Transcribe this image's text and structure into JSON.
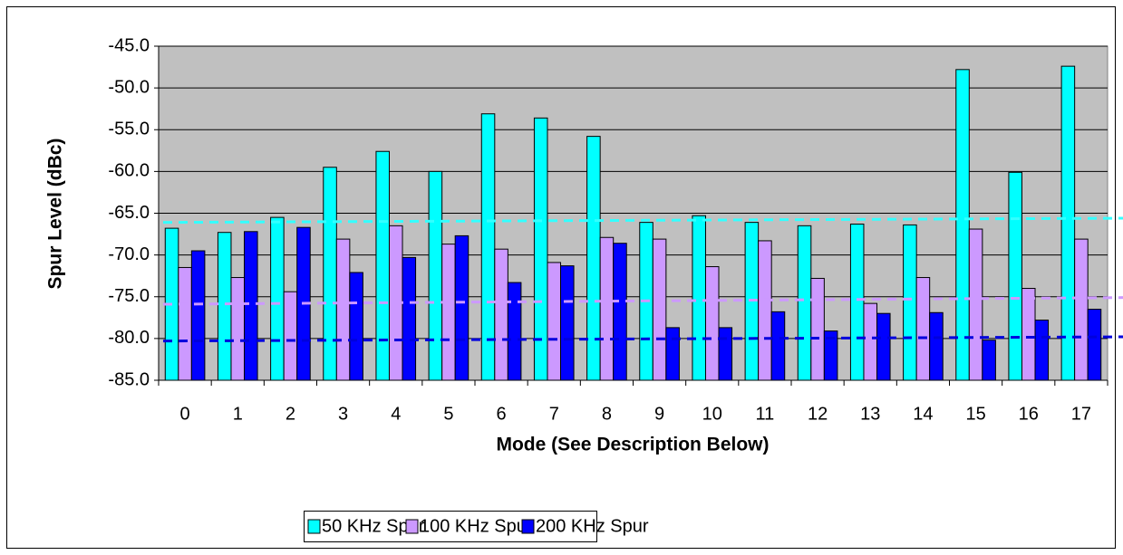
{
  "chart_data": {
    "type": "bar",
    "y_axis_label": "Spur Level (dBc)",
    "x_axis_label": "Mode (See Description Below)",
    "categories": [
      "0",
      "1",
      "2",
      "3",
      "4",
      "5",
      "6",
      "7",
      "8",
      "9",
      "10",
      "11",
      "12",
      "13",
      "14",
      "15",
      "16",
      "17"
    ],
    "series": [
      {
        "name": "50 KHz Spur",
        "color": "#00ffff",
        "values": [
          -66.8,
          -67.3,
          -65.5,
          -59.5,
          -57.6,
          -60.0,
          -53.1,
          -53.6,
          -55.8,
          -66.1,
          -65.3,
          -66.1,
          -66.5,
          -66.3,
          -66.4,
          -47.8,
          -60.1,
          -47.4
        ]
      },
      {
        "name": "100 KHz Spur",
        "color": "#cc99ff",
        "values": [
          -71.5,
          -72.7,
          -74.4,
          -68.1,
          -66.5,
          -68.7,
          -69.3,
          -70.9,
          -67.9,
          -68.1,
          -71.4,
          -68.3,
          -72.8,
          -75.8,
          -72.7,
          -66.9,
          -74.0,
          -68.1
        ]
      },
      {
        "name": "200 KHz Spur",
        "color": "#0000ff",
        "values": [
          -69.5,
          -67.2,
          -66.7,
          -72.1,
          -70.3,
          -67.7,
          -73.3,
          -71.3,
          -68.6,
          -78.7,
          -78.7,
          -76.8,
          -79.1,
          -77.0,
          -76.9,
          -80.2,
          -77.8,
          -76.5
        ]
      }
    ],
    "reference_lines": [
      {
        "color": "#33ffff",
        "start": -66.1,
        "end": -65.6
      },
      {
        "color": "#cc99ff",
        "start": -75.9,
        "end": -75.1
      },
      {
        "color": "#0000dd",
        "start": -80.3,
        "end": -79.8
      }
    ],
    "ylim": [
      -85,
      -45
    ],
    "yticks": [
      {
        "value": -85,
        "label": "-85.0"
      },
      {
        "value": -80,
        "label": "-80.0"
      },
      {
        "value": -75,
        "label": "-75.0"
      },
      {
        "value": -70,
        "label": "-70.0"
      },
      {
        "value": -65,
        "label": "-65.0"
      },
      {
        "value": -60,
        "label": "-60.0"
      },
      {
        "value": -55,
        "label": "-55.0"
      },
      {
        "value": -50,
        "label": "-50.0"
      },
      {
        "value": -45,
        "label": "-45.0"
      }
    ],
    "grid": true,
    "legend": "bottom",
    "plot_background": "#c0c0c0"
  }
}
